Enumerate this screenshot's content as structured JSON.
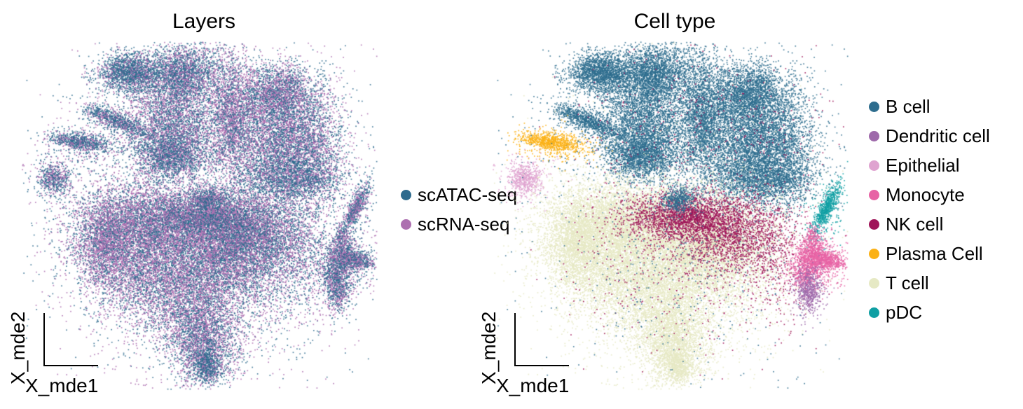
{
  "figure": {
    "background": "#ffffff",
    "text_color": "#000000"
  },
  "axes": {
    "x_label": "X_mde1",
    "y_label": "X_mde2"
  },
  "chart_data": {
    "type": "scatter",
    "description": "Two-panel single-cell MDE embedding; identical point cloud colored by sequencing layer (left panel) and by annotated cell type (right panel). Corner L-shaped axis arrows, no ticks or gridlines.",
    "xlabel": "X_mde1",
    "ylabel": "X_mde2",
    "grid": false,
    "panels": [
      {
        "title": "Layers",
        "color_by": "layer",
        "legend_position": "right of panel, vertically centered, clipped at panel edge",
        "legend": [
          {
            "label": "scATAC-seq",
            "color": "#2e6b8e"
          },
          {
            "label": "scRNA-seq",
            "color": "#ad6fb0"
          }
        ]
      },
      {
        "title": "Cell type",
        "color_by": "cell_type",
        "legend_position": "right of panel, vertically centered",
        "legend": [
          {
            "label": "B cell",
            "color": "#2e6d8e"
          },
          {
            "label": "Dendritic cell",
            "color": "#9e69aa"
          },
          {
            "label": "Epithelial",
            "color": "#dfa3d0"
          },
          {
            "label": "Monocyte",
            "color": "#e763a5"
          },
          {
            "label": "NK cell",
            "color": "#9f1458"
          },
          {
            "label": "Plasma Cell",
            "color": "#fbb116"
          },
          {
            "label": "T cell",
            "color": "#e6e9c4"
          },
          {
            "label": "pDC",
            "color": "#0f9fa3"
          }
        ]
      }
    ],
    "cluster_columns": [
      "cell_type",
      "cx_px",
      "cy_px",
      "sigma_x_px",
      "sigma_y_px",
      "n_points",
      "scATAC_fraction",
      "rotation_deg"
    ],
    "cluster_note": "Gaussian sub-blob summary of the embedding in panel-local pixel coordinates (510x500 canvas). Both panels share geometry; left panel colors each point scATAC vs scRNA by scATAC_fraction, right panel colors by cell_type.",
    "clusters": [
      [
        "B cell",
        155,
        45,
        22,
        15,
        1800,
        0.75,
        0
      ],
      [
        "B cell",
        230,
        45,
        28,
        20,
        2200,
        0.6,
        0
      ],
      [
        "B cell",
        215,
        115,
        33,
        35,
        3000,
        0.5,
        0
      ],
      [
        "B cell",
        215,
        165,
        25,
        16,
        1600,
        0.7,
        0
      ],
      [
        "B cell",
        300,
        105,
        16,
        45,
        1800,
        0.35,
        0
      ],
      [
        "B cell",
        365,
        75,
        28,
        22,
        2200,
        0.5,
        0
      ],
      [
        "B cell",
        370,
        140,
        40,
        35,
        3500,
        0.5,
        0
      ],
      [
        "B cell",
        385,
        195,
        35,
        20,
        2200,
        0.65,
        0
      ],
      [
        "B cell",
        285,
        115,
        90,
        58,
        1400,
        0.5,
        0
      ],
      [
        "B cell",
        420,
        150,
        18,
        45,
        800,
        0.5,
        0
      ],
      [
        "B cell",
        135,
        114,
        25,
        5,
        700,
        0.7,
        23
      ],
      [
        "B cell",
        135,
        114,
        30,
        11,
        250,
        0.5,
        23
      ],
      [
        "Plasma Cell",
        85,
        144,
        22,
        6,
        700,
        0.7,
        8
      ],
      [
        "Plasma Cell",
        88,
        148,
        28,
        13,
        260,
        0.55,
        8
      ],
      [
        "Epithelial",
        46,
        196,
        11,
        12,
        520,
        0.6,
        0
      ],
      [
        "Epithelial",
        48,
        196,
        20,
        18,
        140,
        0.5,
        0
      ],
      [
        "T cell",
        150,
        275,
        42,
        38,
        4200,
        0.4,
        0
      ],
      [
        "T cell",
        225,
        255,
        45,
        25,
        2800,
        0.45,
        0
      ],
      [
        "T cell",
        305,
        290,
        42,
        35,
        4200,
        0.5,
        0
      ],
      [
        "T cell",
        225,
        345,
        55,
        38,
        4200,
        0.4,
        0
      ],
      [
        "T cell",
        120,
        290,
        18,
        30,
        1200,
        0.35,
        0
      ],
      [
        "T cell",
        260,
        425,
        26,
        32,
        2400,
        0.5,
        0
      ],
      [
        "T cell",
        265,
        462,
        11,
        13,
        700,
        0.75,
        0
      ],
      [
        "T cell",
        235,
        325,
        85,
        70,
        1600,
        0.45,
        0
      ],
      [
        "T cell",
        370,
        310,
        40,
        50,
        800,
        0.5,
        0
      ],
      [
        "NK cell",
        275,
        252,
        45,
        17,
        2400,
        0.5,
        0
      ],
      [
        "NK cell",
        345,
        280,
        40,
        28,
        1400,
        0.5,
        0
      ],
      [
        "NK cell",
        400,
        300,
        30,
        55,
        500,
        0.5,
        0
      ],
      [
        "NK cell",
        300,
        120,
        85,
        55,
        350,
        0.5,
        0
      ],
      [
        "NK cell",
        250,
        330,
        80,
        60,
        350,
        0.5,
        0
      ],
      [
        "B cell",
        265,
        227,
        12,
        9,
        500,
        0.6,
        0
      ],
      [
        "B cell",
        280,
        330,
        80,
        70,
        300,
        0.5,
        0
      ],
      [
        "pDC",
        478,
        236,
        20,
        5,
        600,
        0.55,
        -63
      ],
      [
        "pDC",
        475,
        250,
        14,
        22,
        160,
        0.5,
        0
      ],
      [
        "Monocyte",
        462,
        312,
        14,
        12,
        900,
        0.55,
        0
      ],
      [
        "Monocyte",
        456,
        290,
        6,
        12,
        260,
        0.55,
        0
      ],
      [
        "Monocyte",
        484,
        314,
        14,
        5,
        260,
        0.55,
        15
      ],
      [
        "Monocyte",
        444,
        336,
        8,
        10,
        260,
        0.55,
        -40
      ],
      [
        "Monocyte",
        462,
        315,
        26,
        22,
        350,
        0.5,
        0
      ],
      [
        "Dendritic cell",
        452,
        356,
        8,
        16,
        460,
        0.5,
        0
      ],
      [
        "Dendritic cell",
        452,
        356,
        14,
        24,
        120,
        0.5,
        0
      ],
      [
        "B cell",
        250,
        240,
        170,
        150,
        350,
        0.5,
        0
      ],
      [
        "T cell",
        250,
        320,
        170,
        130,
        350,
        0.5,
        0
      ]
    ]
  }
}
